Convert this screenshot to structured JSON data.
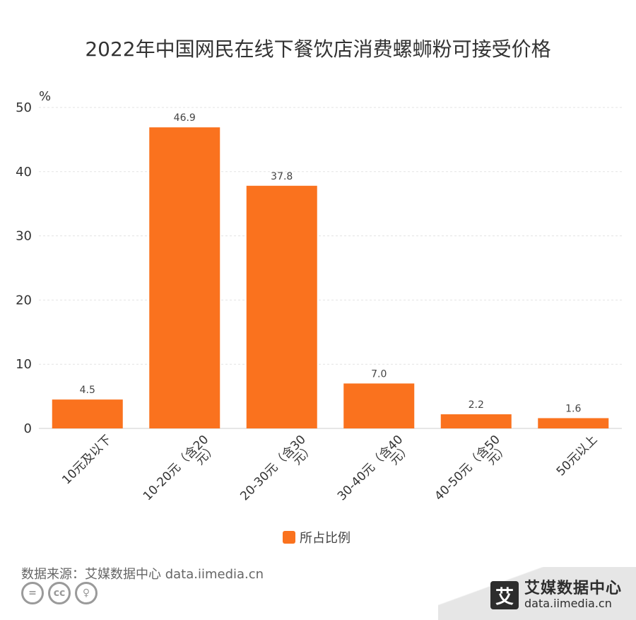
{
  "title": "2022年中国网民在线下餐饮店消费螺蛳粉可接受价格",
  "legend": {
    "label": "所占比例",
    "color": "#fa721e"
  },
  "source": "数据来源：艾媒数据中心 data.iimedia.cn",
  "license_icons": [
    "equals-icon",
    "cc-icon",
    "person-icon"
  ],
  "license_glyphs": {
    "equals": "=",
    "cc": "cc",
    "person": "♀"
  },
  "brand": {
    "logo_char": "艾",
    "name": "艾媒数据中心",
    "url": "data.iimedia.cn"
  },
  "chart_data": {
    "type": "bar",
    "unit_label": "%",
    "categories": [
      "10元及以下",
      "10-20元（含20元）",
      "20-30元（含30元）",
      "30-40元（含40元）",
      "40-50元（含50元）",
      "50元以上"
    ],
    "category_lines": [
      [
        "10元及以下"
      ],
      [
        "10-20元（含20",
        "元）"
      ],
      [
        "20-30元（含30",
        "元）"
      ],
      [
        "30-40元（含40",
        "元）"
      ],
      [
        "40-50元（含50",
        "元）"
      ],
      [
        "50元以上"
      ]
    ],
    "series": [
      {
        "name": "所占比例",
        "values": [
          4.5,
          46.9,
          37.8,
          7.0,
          2.2,
          1.6
        ],
        "labels": [
          "4.5",
          "46.9",
          "37.8",
          "7.0",
          "2.2",
          "1.6"
        ]
      }
    ],
    "ylim": [
      0,
      50
    ],
    "yticks": [
      0,
      10,
      20,
      30,
      40,
      50
    ],
    "grid": true,
    "legend_position": "bottom"
  }
}
